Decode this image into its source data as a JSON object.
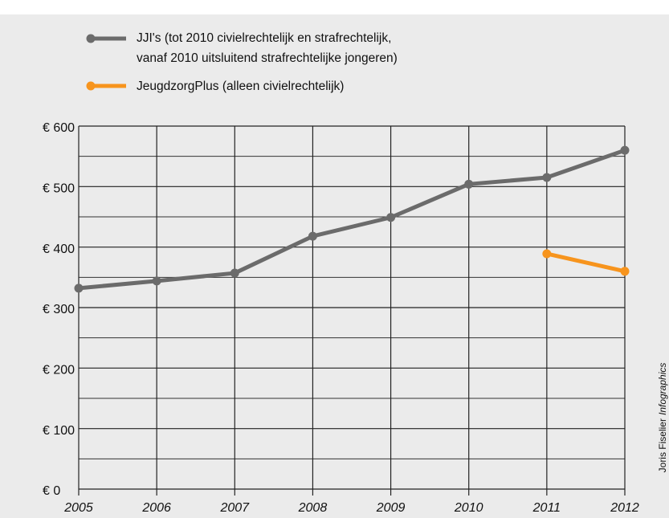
{
  "chart_data": {
    "type": "line",
    "x": [
      2005,
      2006,
      2007,
      2008,
      2009,
      2010,
      2011,
      2012
    ],
    "xlim": [
      2005,
      2012
    ],
    "xticks": [
      2005,
      2006,
      2007,
      2008,
      2009,
      2010,
      2011,
      2012
    ],
    "ylim": [
      0,
      600
    ],
    "yticks": [
      {
        "value": 0,
        "label": "€ 0"
      },
      {
        "value": 100,
        "label": "€ 100"
      },
      {
        "value": 200,
        "label": "€ 200"
      },
      {
        "value": 300,
        "label": "€ 300"
      },
      {
        "value": 400,
        "label": "€ 400"
      },
      {
        "value": 500,
        "label": "€ 500"
      },
      {
        "value": 600,
        "label": "€ 600"
      }
    ],
    "minor_yticks": [
      50,
      150,
      250,
      350,
      450,
      550
    ],
    "grid": true,
    "series": [
      {
        "name": "JJI's (tot 2010 civielrechtelijk en strafrechtelijk,\nvanaf 2010 uitsluitend strafrechtelijke jongeren)",
        "color": "#6b6b6b",
        "values": [
          332,
          344,
          357,
          418,
          449,
          504,
          515,
          560
        ]
      },
      {
        "name": "JeugdzorgPlus (alleen civielrechtelijk)",
        "color": "#f7941d",
        "values": [
          null,
          null,
          null,
          null,
          null,
          null,
          389,
          360
        ]
      }
    ],
    "credit": {
      "name": "Joris Fiselier",
      "studio": "Infographics"
    }
  }
}
